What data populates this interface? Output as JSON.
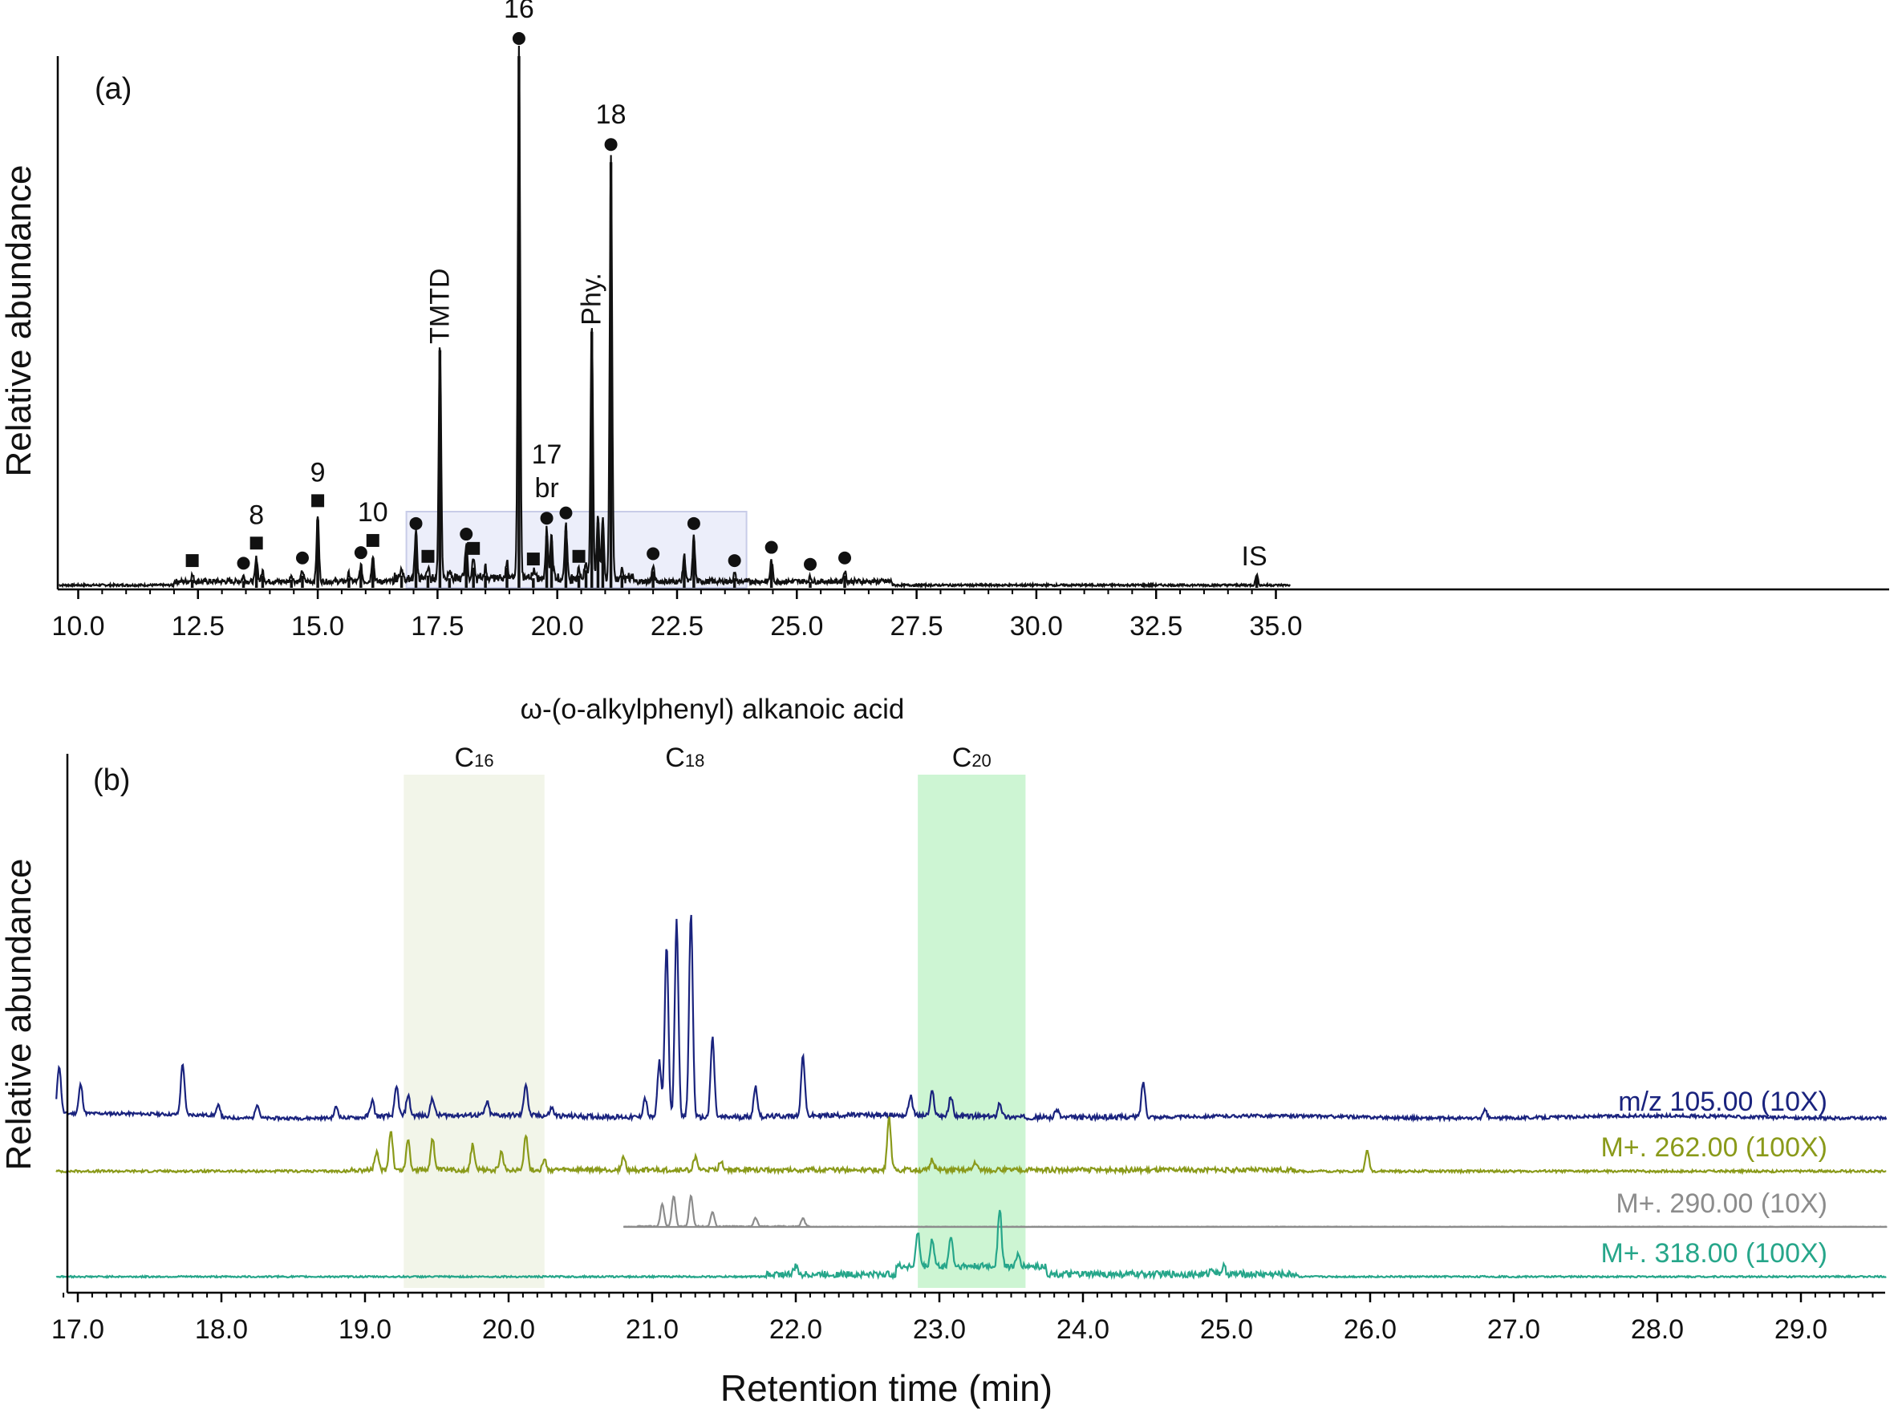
{
  "chart_data": [
    {
      "panel_label": "(a)",
      "type": "line",
      "ylabel": "Relative abundance",
      "xlim": [
        9.6,
        35.3
      ],
      "x_ticks": [
        "10.0",
        "12.5",
        "15.0",
        "17.5",
        "20.0",
        "22.5",
        "25.0",
        "27.5",
        "30.0",
        "32.5",
        "35.0"
      ],
      "peaks": [
        {
          "x": 12.38,
          "y": 0.012,
          "marker": "square"
        },
        {
          "x": 13.45,
          "y": 0.01,
          "marker": "circle"
        },
        {
          "x": 13.72,
          "y": 0.045,
          "marker": "square",
          "label": "8"
        },
        {
          "x": 13.85,
          "y": 0.02
        },
        {
          "x": 14.45,
          "y": 0.012
        },
        {
          "x": 14.68,
          "y": 0.02,
          "marker": "circle"
        },
        {
          "x": 15.0,
          "y": 0.125,
          "marker": "square",
          "label": "9"
        },
        {
          "x": 15.65,
          "y": 0.015
        },
        {
          "x": 15.9,
          "y": 0.03,
          "marker": "circle"
        },
        {
          "x": 16.15,
          "y": 0.05,
          "marker": "square",
          "label": "10"
        },
        {
          "x": 16.75,
          "y": 0.02
        },
        {
          "x": 17.05,
          "y": 0.085,
          "marker": "circle"
        },
        {
          "x": 17.3,
          "y": 0.02,
          "marker": "square"
        },
        {
          "x": 17.55,
          "y": 0.445,
          "text": "TMTD"
        },
        {
          "x": 17.75,
          "y": 0.015
        },
        {
          "x": 18.1,
          "y": 0.065,
          "marker": "circle"
        },
        {
          "x": 18.25,
          "y": 0.035,
          "marker": "square"
        },
        {
          "x": 18.5,
          "y": 0.02
        },
        {
          "x": 18.95,
          "y": 0.035
        },
        {
          "x": 19.2,
          "y": 1.0,
          "marker": "circle",
          "label": "16"
        },
        {
          "x": 19.5,
          "y": 0.015,
          "marker": "square"
        },
        {
          "x": 19.78,
          "y": 0.095,
          "marker": "circle",
          "label": "17\nbr"
        },
        {
          "x": 19.88,
          "y": 0.085
        },
        {
          "x": 20.18,
          "y": 0.105,
          "marker": "circle"
        },
        {
          "x": 20.45,
          "y": 0.02,
          "marker": "square"
        },
        {
          "x": 20.6,
          "y": 0.03
        },
        {
          "x": 20.72,
          "y": 0.48,
          "text": "Phy."
        },
        {
          "x": 20.85,
          "y": 0.12
        },
        {
          "x": 20.95,
          "y": 0.11
        },
        {
          "x": 21.12,
          "y": 0.8,
          "marker": "circle",
          "label": "18"
        },
        {
          "x": 21.35,
          "y": 0.02
        },
        {
          "x": 22.0,
          "y": 0.028,
          "marker": "circle"
        },
        {
          "x": 22.65,
          "y": 0.05
        },
        {
          "x": 22.85,
          "y": 0.085,
          "marker": "circle"
        },
        {
          "x": 23.7,
          "y": 0.015,
          "marker": "circle"
        },
        {
          "x": 24.47,
          "y": 0.04,
          "marker": "circle"
        },
        {
          "x": 25.28,
          "y": 0.008,
          "marker": "circle"
        },
        {
          "x": 26.0,
          "y": 0.02,
          "marker": "circle"
        },
        {
          "x": 34.6,
          "y": 0.02,
          "text": "IS"
        }
      ],
      "highlight_box": [
        16.85,
        23.95
      ]
    },
    {
      "panel_label": "(b)",
      "type": "line",
      "title": "ω-(o-alkylphenyl) alkanoic acid",
      "xlabel": "Retention time (min)",
      "ylabel": "Relative abundance",
      "xlim": [
        16.85,
        29.6
      ],
      "x_ticks": [
        "17.0",
        "18.0",
        "19.0",
        "20.0",
        "21.0",
        "22.0",
        "23.0",
        "24.0",
        "25.0",
        "26.0",
        "27.0",
        "28.0",
        "29.0"
      ],
      "regions": [
        {
          "c": "C",
          "sub": "16",
          "x0": 19.27,
          "x1": 20.25,
          "color": "#f2f5e9"
        },
        {
          "c": "C",
          "sub": "18",
          "x0": 21.2,
          "x1": 21.2,
          "color": ""
        },
        {
          "c": "C",
          "sub": "20",
          "x0": 22.85,
          "x1": 23.6,
          "color": "#cdf5d3"
        }
      ],
      "series": [
        {
          "name": "m/z 105.00 (10X)",
          "color": "#1a237e",
          "peaks": [
            [
              16.87,
              60
            ],
            [
              17.02,
              36
            ],
            [
              17.73,
              64
            ],
            [
              17.98,
              12
            ],
            [
              18.25,
              18
            ],
            [
              18.8,
              14
            ],
            [
              19.05,
              20
            ],
            [
              19.22,
              36
            ],
            [
              19.3,
              26
            ],
            [
              19.47,
              22
            ],
            [
              19.85,
              16
            ],
            [
              20.12,
              40
            ],
            [
              20.3,
              10
            ],
            [
              20.95,
              24
            ],
            [
              21.05,
              70
            ],
            [
              21.1,
              215
            ],
            [
              21.17,
              245
            ],
            [
              21.27,
              255
            ],
            [
              21.42,
              100
            ],
            [
              21.72,
              38
            ],
            [
              22.05,
              75
            ],
            [
              22.8,
              25
            ],
            [
              22.95,
              30
            ],
            [
              23.08,
              24
            ],
            [
              23.42,
              18
            ],
            [
              23.82,
              10
            ],
            [
              24.42,
              44
            ],
            [
              26.8,
              10
            ]
          ]
        },
        {
          "name": "M+. 262.00 (100X)",
          "color": "#8a9a1a",
          "peaks": [
            [
              19.08,
              22
            ],
            [
              19.18,
              50
            ],
            [
              19.3,
              38
            ],
            [
              19.47,
              40
            ],
            [
              19.75,
              32
            ],
            [
              19.95,
              22
            ],
            [
              20.12,
              45
            ],
            [
              20.25,
              12
            ],
            [
              20.8,
              16
            ],
            [
              21.3,
              16
            ],
            [
              21.48,
              12
            ],
            [
              22.65,
              65
            ],
            [
              22.95,
              14
            ],
            [
              23.25,
              10
            ],
            [
              25.98,
              26
            ]
          ]
        },
        {
          "name": "M+. 290.00 (10X)",
          "color": "#8c8c8c",
          "peaks": [
            [
              21.07,
              28
            ],
            [
              21.15,
              38
            ],
            [
              21.27,
              38
            ],
            [
              21.42,
              18
            ],
            [
              21.72,
              10
            ],
            [
              22.05,
              10
            ]
          ]
        },
        {
          "name": "M+. 318.00 (100X)",
          "color": "#26a68a",
          "peaks": [
            [
              22.0,
              10
            ],
            [
              22.85,
              42
            ],
            [
              22.95,
              34
            ],
            [
              23.08,
              38
            ],
            [
              23.42,
              72
            ],
            [
              23.55,
              14
            ],
            [
              24.9,
              8
            ],
            [
              24.98,
              10
            ]
          ]
        }
      ]
    }
  ]
}
